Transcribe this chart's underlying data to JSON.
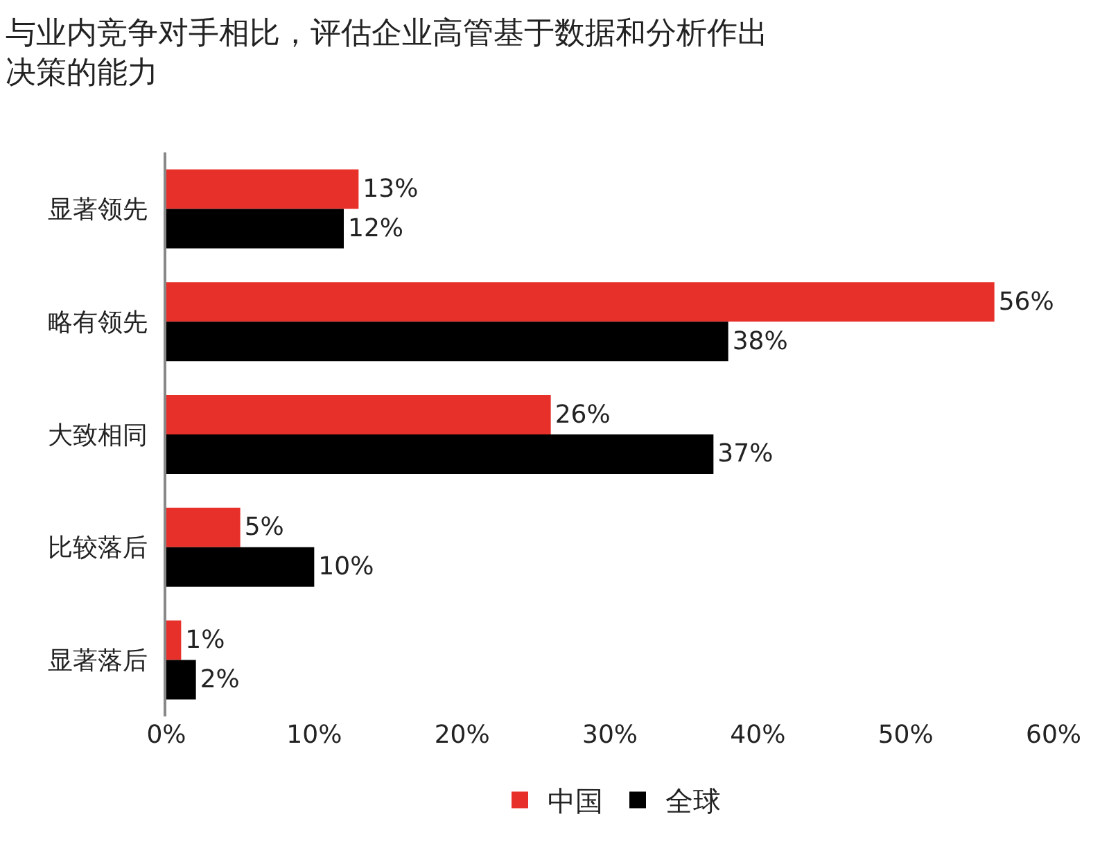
{
  "chart_data": {
    "type": "bar",
    "orientation": "horizontal",
    "title": "与业内竞争对手相比，评估企业高管基于数据和分析作出决策的能力",
    "categories": [
      "显著领先",
      "略有领先",
      "大致相同",
      "比较落后",
      "显著落后"
    ],
    "series": [
      {
        "name": "中国",
        "color": "#e8302a",
        "values": [
          13,
          56,
          26,
          5,
          1
        ],
        "value_labels": [
          "13%",
          "56%",
          "26%",
          "5%",
          "1%"
        ]
      },
      {
        "name": "全球",
        "color": "#000000",
        "values": [
          12,
          38,
          37,
          10,
          2
        ],
        "value_labels": [
          "12%",
          "38%",
          "37%",
          "10%",
          "2%"
        ]
      }
    ],
    "xlim": [
      0,
      60
    ],
    "xticks": [
      {
        "value": 0,
        "label": "0%"
      },
      {
        "value": 10,
        "label": "10%"
      },
      {
        "value": 20,
        "label": "20%"
      },
      {
        "value": 30,
        "label": "30%"
      },
      {
        "value": 40,
        "label": "40%"
      },
      {
        "value": 50,
        "label": "50%"
      },
      {
        "value": 60,
        "label": "60%"
      }
    ],
    "legend": "bottom"
  }
}
